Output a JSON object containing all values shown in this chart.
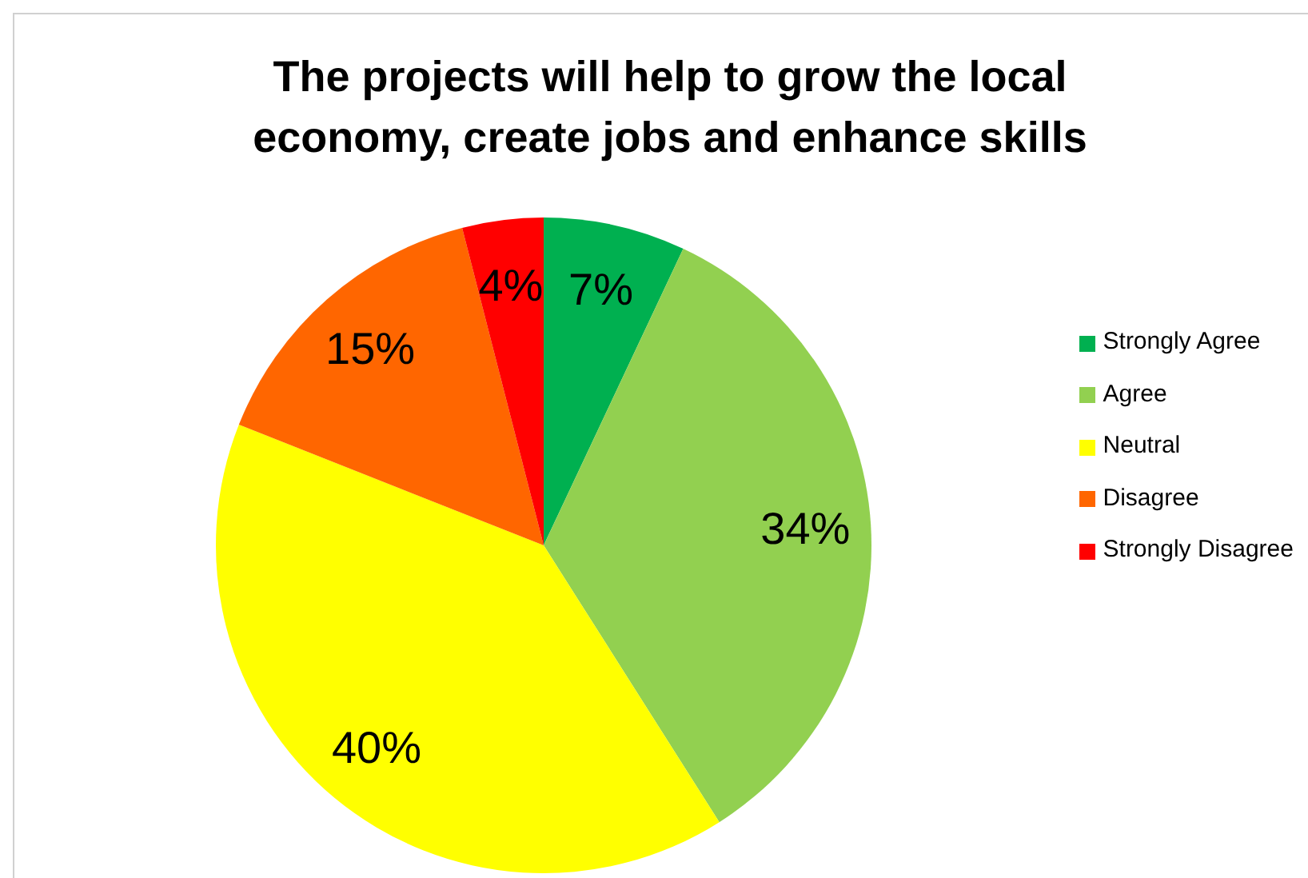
{
  "chart_data": {
    "type": "pie",
    "title": "The projects will help to grow the local economy, create jobs and enhance skills",
    "categories": [
      "Strongly Agree",
      "Agree",
      "Neutral",
      "Disagree",
      "Strongly Disagree"
    ],
    "values": [
      7,
      34,
      40,
      15,
      4
    ],
    "colors": [
      "#00b050",
      "#92d050",
      "#ffff00",
      "#ff6600",
      "#ff0000"
    ],
    "value_labels": [
      "7%",
      "34%",
      "40%",
      "15%",
      "4%"
    ],
    "legend": "right"
  }
}
